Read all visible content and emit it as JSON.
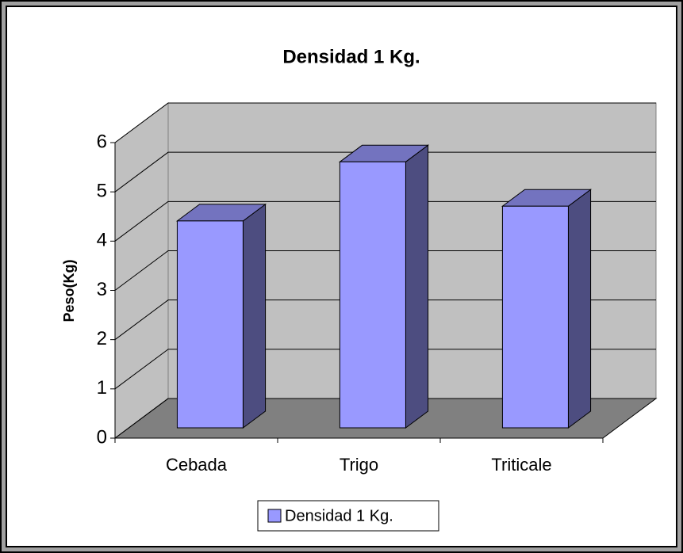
{
  "chart_data": {
    "type": "bar3d",
    "title": "Densidad 1 Kg.",
    "y_label": "Peso(Kg)",
    "categories": [
      "Cebada",
      "Trigo",
      "Triticale"
    ],
    "series": [
      {
        "name": "Densidad 1 Kg.",
        "color": "#9999ff",
        "values": [
          4.2,
          5.4,
          4.5
        ]
      }
    ],
    "ylim": [
      0,
      6
    ],
    "yticks": [
      0,
      1,
      2,
      3,
      4,
      5,
      6
    ],
    "grid": true,
    "legend": "bottom"
  }
}
